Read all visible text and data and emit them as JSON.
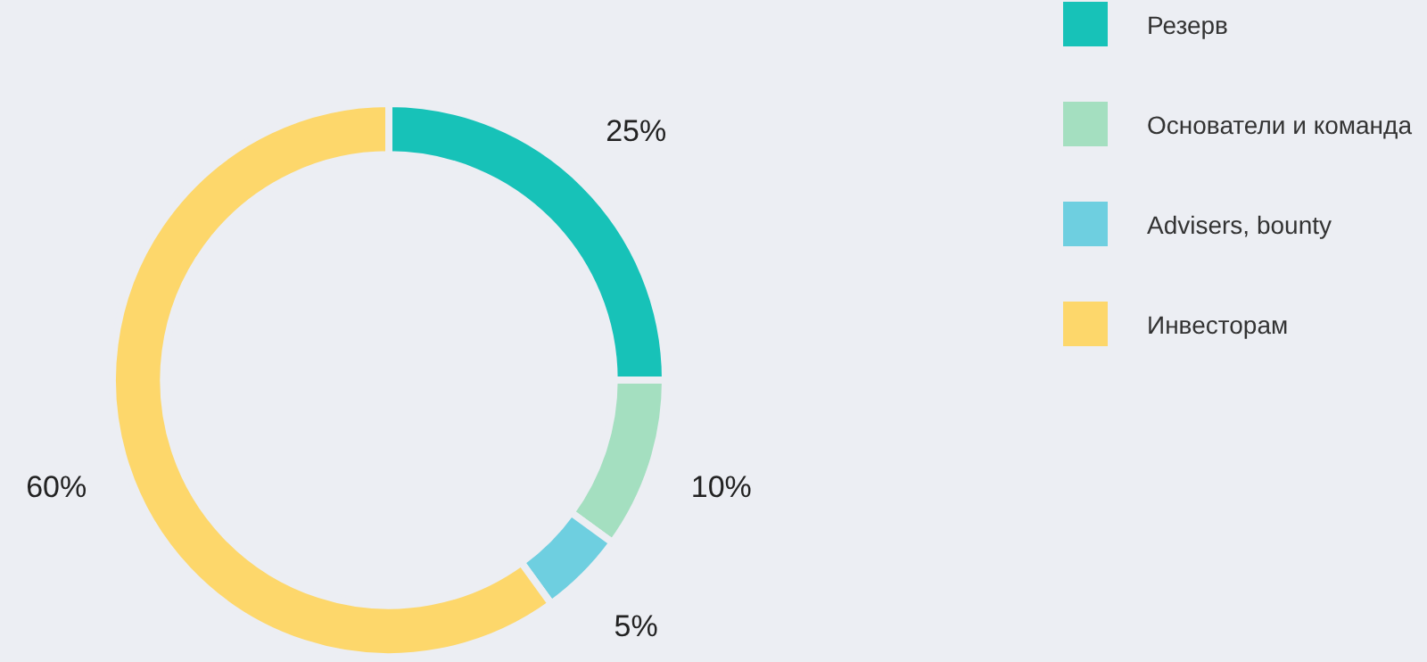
{
  "chart_data": {
    "type": "donut",
    "categories": [
      "Резерв",
      "Основатели и команда",
      "Advisers, bounty",
      "Инвесторам"
    ],
    "values": [
      25,
      10,
      5,
      60
    ],
    "colors": [
      "#17c2b8",
      "#a4dfc0",
      "#6ecfe0",
      "#fdd76b"
    ],
    "value_labels": [
      "25%",
      "10%",
      "5%",
      "60%"
    ],
    "legend": "right"
  }
}
